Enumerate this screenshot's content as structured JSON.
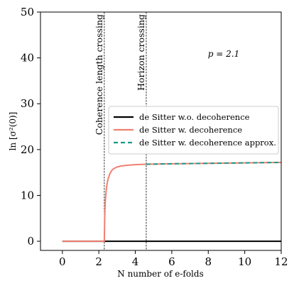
{
  "chart_data": {
    "type": "line",
    "xlabel": "N number of e-folds",
    "ylabel": "ln [σ²(0)]",
    "xlim": [
      -1.2,
      12
    ],
    "ylim": [
      -2,
      50
    ],
    "xticks": [
      0,
      2,
      4,
      6,
      8,
      10,
      12
    ],
    "yticks": [
      0,
      10,
      20,
      30,
      40,
      50
    ],
    "grid": false,
    "legend_position": "center-right",
    "annotation": "p = 2.1",
    "vertical_lines": [
      {
        "x": 2.3,
        "label": "Coherence length crossing"
      },
      {
        "x": 4.6,
        "label": "Horizon crossing"
      }
    ],
    "series": [
      {
        "name": "de Sitter w.o. decoherence",
        "color": "#000000",
        "style": "solid",
        "x": [
          0,
          2.3,
          4,
          6,
          8,
          10,
          12
        ],
        "y": [
          0,
          0,
          0,
          0,
          0,
          0,
          0
        ]
      },
      {
        "name": "de Sitter w. decoherence",
        "color": "#f08070",
        "style": "solid",
        "x": [
          0,
          1,
          2,
          2.3,
          2.32,
          2.35,
          2.4,
          2.45,
          2.5,
          2.6,
          2.7,
          2.8,
          3.0,
          3.2,
          3.5,
          4.0,
          4.6,
          6,
          8,
          10,
          12
        ],
        "y": [
          0,
          0,
          0,
          0,
          5,
          8.5,
          11.0,
          12.5,
          13.5,
          14.7,
          15.4,
          15.8,
          16.2,
          16.4,
          16.55,
          16.7,
          16.8,
          16.9,
          17.0,
          17.1,
          17.2
        ]
      },
      {
        "name": "de Sitter w. decoherence approx.",
        "color": "#1a9988",
        "style": "dashed",
        "x": [
          4.6,
          6,
          8,
          10,
          12
        ],
        "y": [
          16.8,
          16.9,
          17.0,
          17.1,
          17.2
        ]
      }
    ]
  }
}
